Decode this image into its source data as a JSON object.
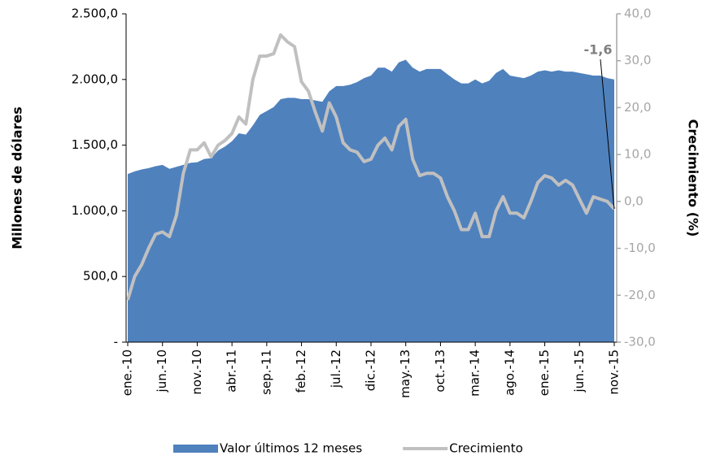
{
  "chart_data": {
    "type": "area-line",
    "y_label": "Millones de dólares",
    "y2_label": "Crecimiento (%)",
    "categories": [
      "ene.-10",
      null,
      null,
      null,
      null,
      "jun.-10",
      null,
      null,
      null,
      null,
      "nov.-10",
      null,
      null,
      null,
      null,
      "abr.-11",
      null,
      null,
      null,
      null,
      "sep.-11",
      null,
      null,
      null,
      null,
      "feb.-12",
      null,
      null,
      null,
      null,
      "jul.-12",
      null,
      null,
      null,
      null,
      "dic.-12",
      null,
      null,
      null,
      null,
      "may.-13",
      null,
      null,
      null,
      null,
      "oct.-13",
      null,
      null,
      null,
      null,
      "mar.-14",
      null,
      null,
      null,
      null,
      "ago.-14",
      null,
      null,
      null,
      null,
      "ene.-15",
      null,
      null,
      null,
      null,
      "jun.-15",
      null,
      null,
      null,
      null,
      "nov.-15"
    ],
    "series": [
      {
        "name": "Valor últimos 12 meses",
        "type": "area",
        "color": "#4f81bd",
        "values": [
          1280,
          1300,
          1315,
          1325,
          1340,
          1350,
          1320,
          1335,
          1350,
          1365,
          1370,
          1395,
          1400,
          1460,
          1490,
          1530,
          1590,
          1580,
          1650,
          1730,
          1760,
          1790,
          1850,
          1860,
          1860,
          1850,
          1850,
          1840,
          1830,
          1910,
          1950,
          1950,
          1960,
          1980,
          2010,
          2030,
          2090,
          2090,
          2060,
          2130,
          2150,
          2090,
          2060,
          2080,
          2080,
          2080,
          2040,
          2000,
          1970,
          1970,
          2000,
          1970,
          1990,
          2050,
          2080,
          2030,
          2020,
          2010,
          2030,
          2060,
          2070,
          2060,
          2070,
          2060,
          2060,
          2050,
          2040,
          2030,
          2030,
          2010,
          2000
        ]
      },
      {
        "name": "Crecimiento",
        "type": "line",
        "axis": "y2",
        "color": "#c0c0c0",
        "values": [
          -21,
          -16,
          -13.5,
          -10,
          -7,
          -6.5,
          -7.5,
          -3,
          6,
          11,
          11,
          12.5,
          9.5,
          12,
          13,
          14.5,
          18,
          16.5,
          26,
          31,
          31,
          31.5,
          35.5,
          34,
          33,
          25.5,
          23.5,
          19,
          15,
          21,
          18,
          12.5,
          11,
          10.5,
          8.5,
          9,
          12,
          13.5,
          11,
          16,
          17.5,
          9,
          5.5,
          6,
          6,
          5,
          1,
          -2,
          -6,
          -6,
          -2.5,
          -7.5,
          -7.5,
          -2,
          1,
          -2.5,
          -2.5,
          -3.5,
          0,
          4,
          5.5,
          5,
          3.5,
          4.5,
          3.5,
          0.5,
          -2.5,
          1,
          0.5,
          0,
          -1.6
        ],
        "value_labels": [
          null,
          null,
          null,
          null,
          null,
          null,
          null,
          null,
          null,
          null,
          null,
          null,
          null,
          null,
          null,
          null,
          null,
          null,
          null,
          null,
          null,
          null,
          null,
          null,
          null,
          null,
          null,
          null,
          null,
          null,
          null,
          null,
          null,
          null,
          null,
          null,
          null,
          null,
          null,
          null,
          null,
          null,
          null,
          null,
          null,
          null,
          null,
          null,
          null,
          null,
          null,
          null,
          null,
          null,
          null,
          null,
          null,
          null,
          null,
          null,
          null,
          null,
          null,
          null,
          null,
          null,
          null,
          null,
          null,
          null,
          "-1,6"
        ]
      }
    ],
    "ylim": [
      0,
      2500
    ],
    "yticks": [
      {
        "value": 0,
        "label": "-"
      },
      {
        "value": 500,
        "label": "500,0"
      },
      {
        "value": 1000,
        "label": "1.000,0"
      },
      {
        "value": 1500,
        "label": "1.500,0"
      },
      {
        "value": 2000,
        "label": "2.000,0"
      },
      {
        "value": 2500,
        "label": "2.500,0"
      }
    ],
    "y2lim": [
      -30,
      40
    ],
    "y2ticks": [
      {
        "value": -30,
        "label": "-30,0"
      },
      {
        "value": -20,
        "label": "-20,0"
      },
      {
        "value": -10,
        "label": "-10,0"
      },
      {
        "value": 0,
        "label": "0,0"
      },
      {
        "value": 10,
        "label": "10,0"
      },
      {
        "value": 20,
        "label": "20,0"
      },
      {
        "value": 30,
        "label": "30,0"
      },
      {
        "value": 40,
        "label": "40,0"
      }
    ],
    "legend": "bottom"
  }
}
